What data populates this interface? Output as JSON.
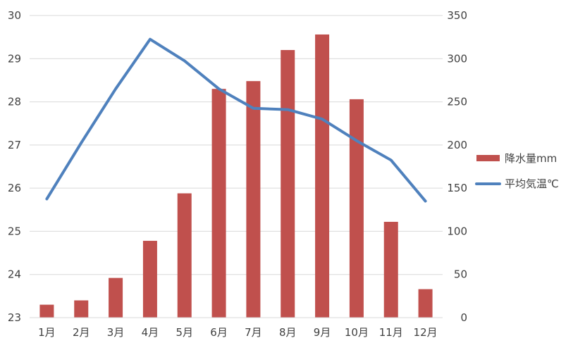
{
  "chart_data": {
    "type": "bar",
    "categories": [
      "1月",
      "2月",
      "3月",
      "4月",
      "5月",
      "6月",
      "7月",
      "8月",
      "9月",
      "10月",
      "11月",
      "12月"
    ],
    "series": [
      {
        "name": "降水量mm",
        "type": "bar",
        "axis": "right",
        "color": "#c0504d",
        "values": [
          15,
          20,
          46,
          89,
          144,
          265,
          274,
          310,
          328,
          253,
          111,
          33
        ]
      },
      {
        "name": "平均気温℃",
        "type": "line",
        "axis": "left",
        "color": "#4f81bd",
        "values": [
          25.75,
          27.05,
          28.3,
          29.45,
          28.95,
          28.3,
          27.85,
          27.82,
          27.6,
          27.1,
          26.65,
          25.7
        ]
      }
    ],
    "y_left": {
      "ylim": [
        23,
        30
      ],
      "ticks": [
        "23",
        "24",
        "25",
        "26",
        "27",
        "28",
        "29",
        "30"
      ]
    },
    "y_right": {
      "ylim": [
        0,
        350
      ],
      "ticks": [
        "0",
        "50",
        "100",
        "150",
        "200",
        "250",
        "300",
        "350"
      ]
    },
    "grid": true,
    "legend": "right",
    "title": "",
    "xlabel": "",
    "ylabel": ""
  }
}
